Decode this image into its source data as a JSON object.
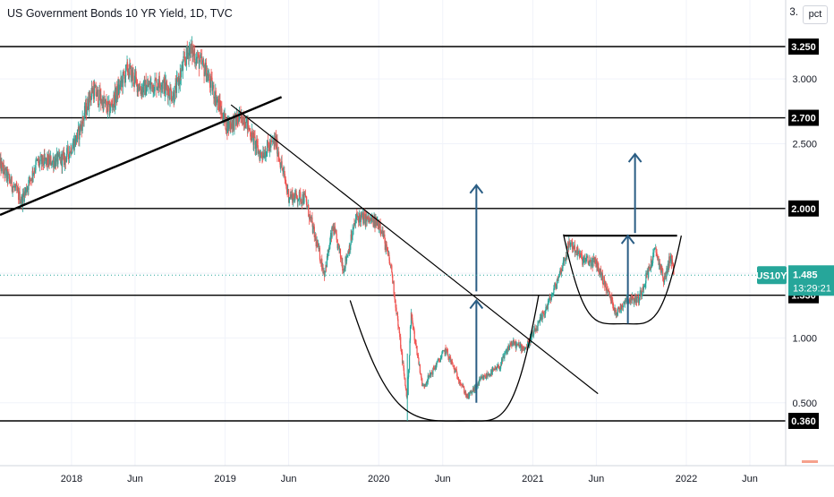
{
  "header": {
    "title": "US Government Bonds 10 YR Yield, 1D, TVC",
    "scale_label": "3.",
    "pct_badge": "pct"
  },
  "chart_data": {
    "type": "candlestick",
    "title": "US Government Bonds 10 YR Yield, 1D, TVC",
    "symbol": "US10Y",
    "last_price": "1.485",
    "countdown": "13:29:21",
    "y_axis_ticks": [
      "3.000",
      "2.500",
      "1.000",
      "0.500"
    ],
    "x_axis_ticks": [
      "2018",
      "Jun",
      "2019",
      "Jun",
      "2020",
      "Jun",
      "2021",
      "Jun",
      "2022",
      "Jun"
    ],
    "ylim": [
      0.2,
      3.55
    ],
    "xlim": [
      "2017-07-15",
      "2022-08-25"
    ],
    "horizontal_levels": [
      "3.250",
      "2.700",
      "2.000",
      "1.330",
      "0.360"
    ],
    "price_path": [
      [
        "2017-07-15",
        2.34
      ],
      [
        "2017-09-05",
        2.06
      ],
      [
        "2017-10-10",
        2.35
      ],
      [
        "2017-12-15",
        2.38
      ],
      [
        "2018-01-15",
        2.55
      ],
      [
        "2018-02-20",
        2.92
      ],
      [
        "2018-04-01",
        2.76
      ],
      [
        "2018-05-15",
        3.08
      ],
      [
        "2018-06-15",
        2.92
      ],
      [
        "2018-08-01",
        2.98
      ],
      [
        "2018-09-01",
        2.87
      ],
      [
        "2018-10-08",
        3.24
      ],
      [
        "2018-11-15",
        3.07
      ],
      [
        "2018-12-15",
        2.82
      ],
      [
        "2019-01-05",
        2.64
      ],
      [
        "2019-02-15",
        2.71
      ],
      [
        "2019-03-25",
        2.41
      ],
      [
        "2019-05-01",
        2.52
      ],
      [
        "2019-06-01",
        2.1
      ],
      [
        "2019-07-10",
        2.08
      ],
      [
        "2019-08-25",
        1.5
      ],
      [
        "2019-09-15",
        1.86
      ],
      [
        "2019-10-10",
        1.53
      ],
      [
        "2019-11-10",
        1.94
      ],
      [
        "2020-01-05",
        1.88
      ],
      [
        "2020-02-01",
        1.52
      ],
      [
        "2020-03-09",
        0.51
      ],
      [
        "2020-03-18",
        1.18
      ],
      [
        "2020-04-15",
        0.62
      ],
      [
        "2020-06-08",
        0.91
      ],
      [
        "2020-07-30",
        0.54
      ],
      [
        "2020-09-01",
        0.68
      ],
      [
        "2020-10-15",
        0.78
      ],
      [
        "2020-11-10",
        0.96
      ],
      [
        "2020-12-15",
        0.92
      ],
      [
        "2021-01-15",
        1.1
      ],
      [
        "2021-02-20",
        1.36
      ],
      [
        "2021-03-31",
        1.74
      ],
      [
        "2021-05-01",
        1.6
      ],
      [
        "2021-06-01",
        1.58
      ],
      [
        "2021-07-20",
        1.19
      ],
      [
        "2021-08-10",
        1.3
      ],
      [
        "2021-09-10",
        1.3
      ],
      [
        "2021-10-20",
        1.68
      ],
      [
        "2021-11-10",
        1.44
      ],
      [
        "2021-11-25",
        1.64
      ],
      [
        "2021-12-03",
        1.485
      ]
    ],
    "drawings": {
      "trend_lines": [
        {
          "from": [
            "2017-07-15",
            1.95
          ],
          "to": [
            "2019-05-15",
            2.86
          ],
          "style": "thick"
        },
        {
          "from": [
            "2019-01-15",
            2.8
          ],
          "to": [
            "2021-06-05",
            0.57
          ],
          "style": "thin"
        }
      ],
      "rim_line": {
        "from": [
          "2021-03-15",
          1.79
        ],
        "to": [
          "2021-12-10",
          1.79
        ]
      },
      "cup_arcs": [
        {
          "start": [
            "2019-10-25",
            1.29
          ],
          "bottom": [
            "2020-08-01",
            0.36
          ],
          "end": [
            "2021-01-15",
            1.33
          ]
        },
        {
          "start": [
            "2021-03-15",
            1.8
          ],
          "bottom": [
            "2021-08-05",
            1.11
          ],
          "end": [
            "2021-12-20",
            1.79
          ]
        }
      ],
      "arrows": [
        {
          "from": [
            "2020-08-20",
            0.5
          ],
          "to": [
            "2020-08-20",
            1.29
          ],
          "color": "#2a5d84"
        },
        {
          "from": [
            "2020-08-20",
            1.36
          ],
          "to": [
            "2020-08-20",
            2.18
          ],
          "color": "#2a5d84"
        },
        {
          "from": [
            "2021-08-15",
            1.11
          ],
          "to": [
            "2021-08-15",
            1.79
          ],
          "color": "#2a5d84"
        },
        {
          "from": [
            "2021-09-01",
            1.81
          ],
          "to": [
            "2021-09-01",
            2.42
          ],
          "color": "#2a5d84"
        }
      ]
    }
  },
  "colors": {
    "up": "#26a69a",
    "down": "#ef5350",
    "grid": "#f0f3fa",
    "level_line": "#000000",
    "arrow": "#2a5d84",
    "last_line": "#26a69a",
    "axis_text": "#131722"
  }
}
